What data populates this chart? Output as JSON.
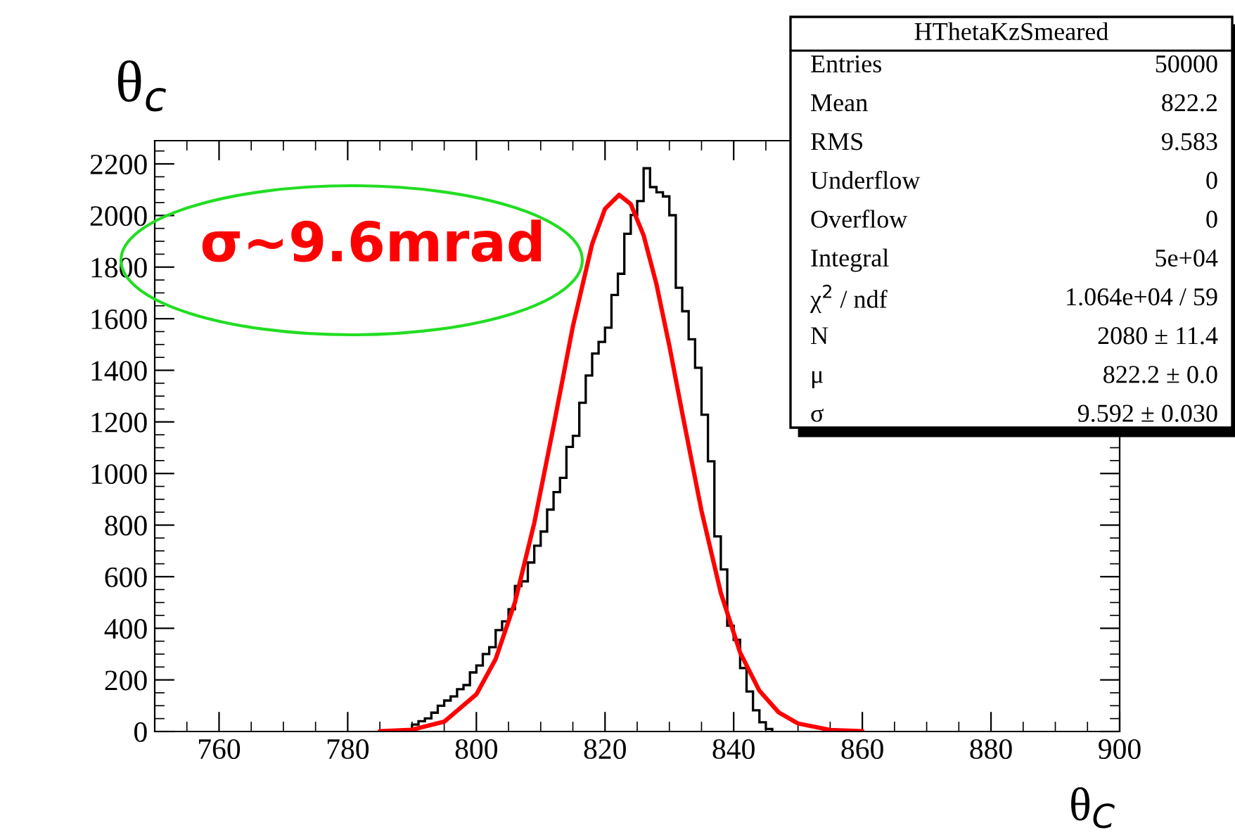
{
  "chart_data": {
    "type": "histogram",
    "ylabel": "θ$_{c}$",
    "xlabel": "θ$_{C}$",
    "xlim": [
      750,
      900
    ],
    "xticks": [
      760,
      780,
      800,
      820,
      840,
      860,
      880,
      900
    ],
    "ylim": [
      0,
      2290
    ],
    "yticks": [
      0,
      200,
      400,
      600,
      800,
      1000,
      1200,
      1400,
      1600,
      1800,
      2000,
      2200
    ],
    "grid": false,
    "legend": false,
    "series": [
      {
        "color": "#000000",
        "bins": [
          789,
          790,
          791,
          792,
          793,
          794,
          795,
          796,
          797,
          798,
          799,
          800,
          801,
          802,
          803,
          804,
          805,
          806,
          807,
          808,
          809,
          810,
          811,
          812,
          813,
          814,
          815,
          816,
          817,
          818,
          819,
          820,
          821,
          822,
          823,
          824,
          825,
          826,
          827,
          828,
          829,
          830,
          831,
          832,
          833,
          834,
          835,
          836,
          837,
          838,
          839,
          840,
          841,
          842,
          843,
          844,
          845,
          846
        ],
        "values": [
          5,
          27,
          40,
          51,
          73,
          100,
          120,
          136,
          164,
          180,
          229,
          256,
          300,
          327,
          393,
          427,
          474,
          564,
          582,
          655,
          720,
          775,
          860,
          928,
          983,
          1103,
          1146,
          1274,
          1380,
          1465,
          1510,
          1565,
          1692,
          1774,
          1929,
          2002,
          2056,
          2183,
          2110,
          2090,
          2074,
          2001,
          1720,
          1629,
          1520,
          1410,
          1228,
          1047,
          756,
          628,
          410,
          355,
          246,
          155,
          82,
          36,
          10
        ]
      },
      {
        "type": "line",
        "color": "#ff0000",
        "x": [
          785,
          790,
          795,
          800,
          803,
          806,
          809,
          812,
          815,
          818,
          820,
          822.2,
          824,
          826,
          828,
          830,
          832,
          835,
          838,
          841,
          844,
          847,
          850,
          855,
          860
        ],
        "values": [
          1,
          7,
          38,
          144,
          281,
          501,
          808,
          1183,
          1570,
          1890,
          2026,
          2080,
          2044,
          1923,
          1733,
          1495,
          1235,
          855,
          537,
          306,
          158,
          74,
          31,
          6,
          1
        ]
      }
    ],
    "annotations": [
      "σ~9.6mrad",
      "HThetaKzSmeared",
      "Entries",
      "50000",
      "Mean",
      "822.2",
      "RMS",
      "9.583",
      "Underflow",
      "0",
      "Overflow",
      "0",
      "Integral",
      "5e+04",
      "χ$^{2}$ / ndf",
      "1.064e+04 / 59",
      "N",
      "2080 ± 11.4",
      "μ",
      "822.2 ± 0.0",
      "σ",
      "9.592 ± 0.030"
    ]
  }
}
